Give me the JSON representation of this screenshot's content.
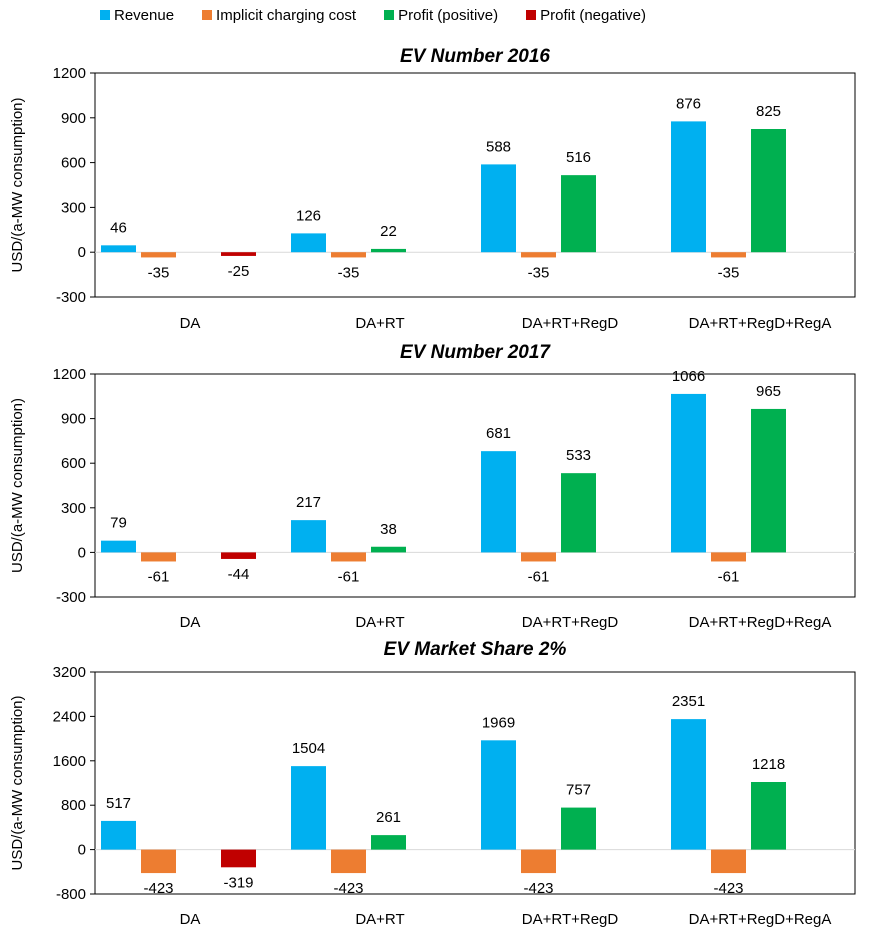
{
  "legend": [
    {
      "label": "Revenue",
      "color": "#00b0f0"
    },
    {
      "label": "Implicit charging cost",
      "color": "#ed7d31"
    },
    {
      "label": "Profit (positive)",
      "color": "#00b050"
    },
    {
      "label": "Profit (negative)",
      "color": "#c00000"
    }
  ],
  "chart_data": [
    {
      "type": "bar",
      "title": "EV Number 2016",
      "ylabel": "USD/(a-MW consumption)",
      "ylim": [
        -300,
        1200
      ],
      "yticks": [
        -300,
        0,
        300,
        600,
        900,
        1200
      ],
      "categories": [
        "DA",
        "DA+RT",
        "DA+RT+RegD",
        "DA+RT+RegD+RegA"
      ],
      "series": [
        {
          "name": "Revenue",
          "values": [
            46,
            126,
            588,
            876
          ]
        },
        {
          "name": "Implicit charging cost",
          "values": [
            -35,
            -35,
            -35,
            -35
          ]
        },
        {
          "name": "Profit (positive)",
          "values": [
            null,
            22,
            516,
            825
          ]
        },
        {
          "name": "Profit (negative)",
          "values": [
            -25,
            null,
            null,
            null
          ]
        }
      ]
    },
    {
      "type": "bar",
      "title": "EV Number 2017",
      "ylabel": "USD/(a-MW consumption)",
      "ylim": [
        -300,
        1200
      ],
      "yticks": [
        -300,
        0,
        300,
        600,
        900,
        1200
      ],
      "categories": [
        "DA",
        "DA+RT",
        "DA+RT+RegD",
        "DA+RT+RegD+RegA"
      ],
      "series": [
        {
          "name": "Revenue",
          "values": [
            79,
            217,
            681,
            1066
          ]
        },
        {
          "name": "Implicit charging cost",
          "values": [
            -61,
            -61,
            -61,
            -61
          ]
        },
        {
          "name": "Profit (positive)",
          "values": [
            null,
            38,
            533,
            965
          ]
        },
        {
          "name": "Profit (negative)",
          "values": [
            -44,
            null,
            null,
            null
          ]
        }
      ]
    },
    {
      "type": "bar",
      "title": "EV Market Share 2%",
      "ylabel": "USD/(a-MW consumption)",
      "ylim": [
        -800,
        3200
      ],
      "yticks": [
        -800,
        0,
        800,
        1600,
        2400,
        3200
      ],
      "categories": [
        "DA",
        "DA+RT",
        "DA+RT+RegD",
        "DA+RT+RegD+RegA"
      ],
      "series": [
        {
          "name": "Revenue",
          "values": [
            517,
            1504,
            1969,
            2351
          ]
        },
        {
          "name": "Implicit charging cost",
          "values": [
            -423,
            -423,
            -423,
            -423
          ]
        },
        {
          "name": "Profit (positive)",
          "values": [
            null,
            261,
            757,
            1218
          ]
        },
        {
          "name": "Profit (negative)",
          "values": [
            -319,
            null,
            null,
            null
          ]
        }
      ]
    }
  ]
}
